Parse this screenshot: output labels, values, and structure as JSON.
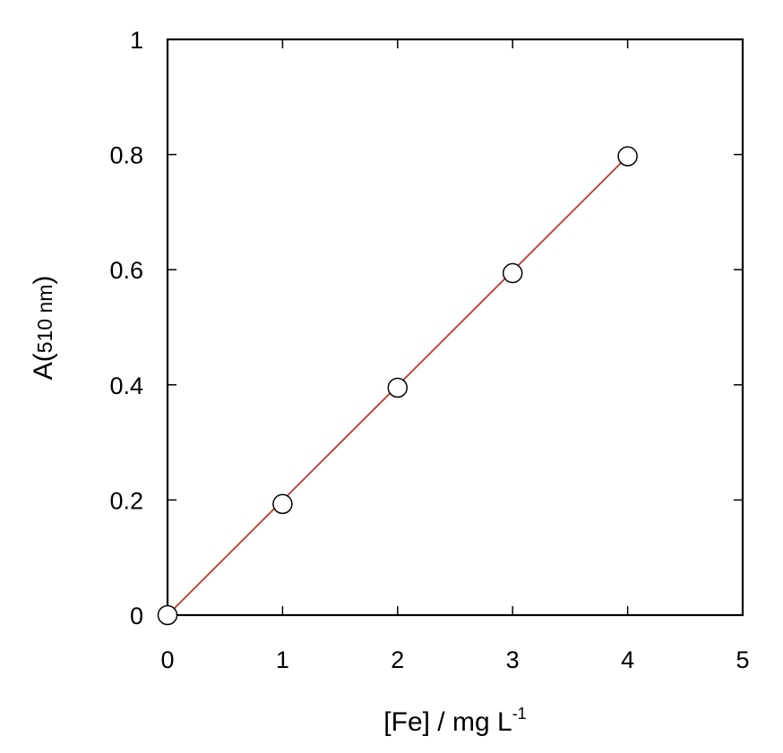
{
  "chart_data": {
    "type": "scatter",
    "title": "",
    "xlabel": {
      "main": "[Fe] / mg L",
      "superscript": "-1"
    },
    "ylabel": {
      "main": "A(",
      "sub": "510 nm",
      "close": ")"
    },
    "xlim": [
      0,
      5
    ],
    "ylim": [
      0,
      1
    ],
    "xticks": [
      0,
      1,
      2,
      3,
      4,
      5
    ],
    "xtick_labels": [
      "0",
      "1",
      "2",
      "3",
      "4",
      "5"
    ],
    "yticks": [
      0,
      0.2,
      0.4,
      0.6,
      0.8,
      1
    ],
    "ytick_labels": [
      "0",
      "0.2",
      "0.4",
      "0.6",
      "0.8",
      "1"
    ],
    "grid": false,
    "legend": "none",
    "series": [
      {
        "marker": "open-circle",
        "x": [
          0,
          1,
          2,
          3,
          4
        ],
        "y": [
          0.0,
          0.193,
          0.395,
          0.594,
          0.797
        ]
      }
    ],
    "fit_line": {
      "x": [
        0,
        4
      ],
      "y": [
        0.0,
        0.797
      ],
      "color": "#c0392b"
    },
    "colors": {
      "axis": "#000000",
      "marker_fill": "#ffffff",
      "marker_stroke": "#000000"
    }
  }
}
